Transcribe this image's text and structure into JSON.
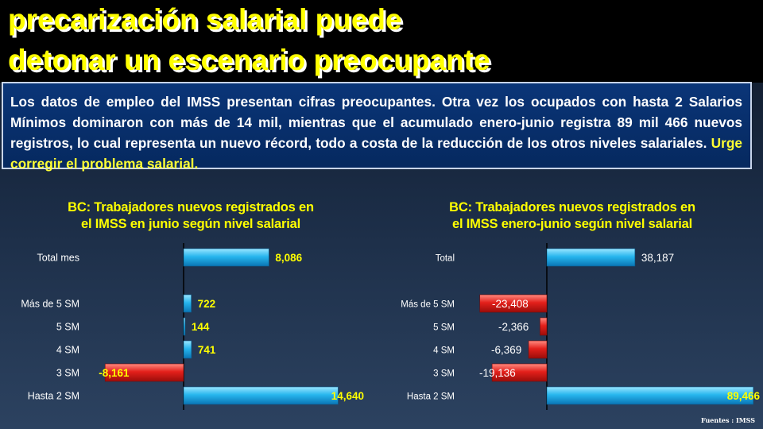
{
  "slide": {
    "title_line1": "precarización salarial puede",
    "title_line2": "detonar un escenario preocupante",
    "description": "Los datos de empleo del IMSS presentan cifras preocupantes. Otra vez los ocupados con hasta 2 Salarios Mínimos dominaron con más de 14 mil, mientras que el acumulado enero-junio registra 89 mil 466 nuevos registros, lo cual representa un nuevo récord, todo a costa de la reducción de los otros niveles salariales.",
    "description_highlight": "Urge corregir el problema salarial.",
    "source": "Fuentes : IMSS",
    "colors": {
      "title": "#ffff00",
      "positive_bar": "#1fb4ec",
      "negative_bar": "#e3201b",
      "label_highlight": "#ffff00",
      "label_plain": "#ffffff"
    }
  },
  "chart_data": [
    {
      "type": "bar",
      "orientation": "horizontal",
      "title": "BC: Trabajadores nuevos registrados en el IMSS en junio según nivel salarial",
      "title_line1": "BC: Trabajadores nuevos registrados en",
      "title_line2": "el IMSS en junio según nivel salarial",
      "categories": [
        "Total  mes",
        "Más de 5 SM",
        "5 SM",
        "4 SM",
        "3 SM",
        "Hasta 2 SM"
      ],
      "values": [
        8086,
        722,
        144,
        741,
        -8161,
        14640
      ],
      "labels": [
        "8,086",
        "722",
        "144",
        "741",
        "-8,161",
        "14,640"
      ],
      "xlim": [
        -10000,
        18000
      ],
      "grid": false
    },
    {
      "type": "bar",
      "orientation": "horizontal",
      "title": "BC: Trabajadores nuevos registrados en el IMSS enero-junio según nivel salarial",
      "title_line1": "BC: Trabajadores nuevos registrados en",
      "title_line2": "el IMSS enero-junio según nivel salarial",
      "categories": [
        "Total",
        "Más de 5 SM",
        "5 SM",
        "4 SM",
        "3 SM",
        "Hasta 2 SM"
      ],
      "values": [
        38187,
        -23408,
        -2366,
        -6369,
        -19136,
        89466
      ],
      "labels": [
        "38,187",
        "-23,408",
        "-2,366",
        "-6,369",
        "-19,136",
        "89,466"
      ],
      "xlim": [
        -30000,
        93000
      ],
      "grid": false
    }
  ]
}
